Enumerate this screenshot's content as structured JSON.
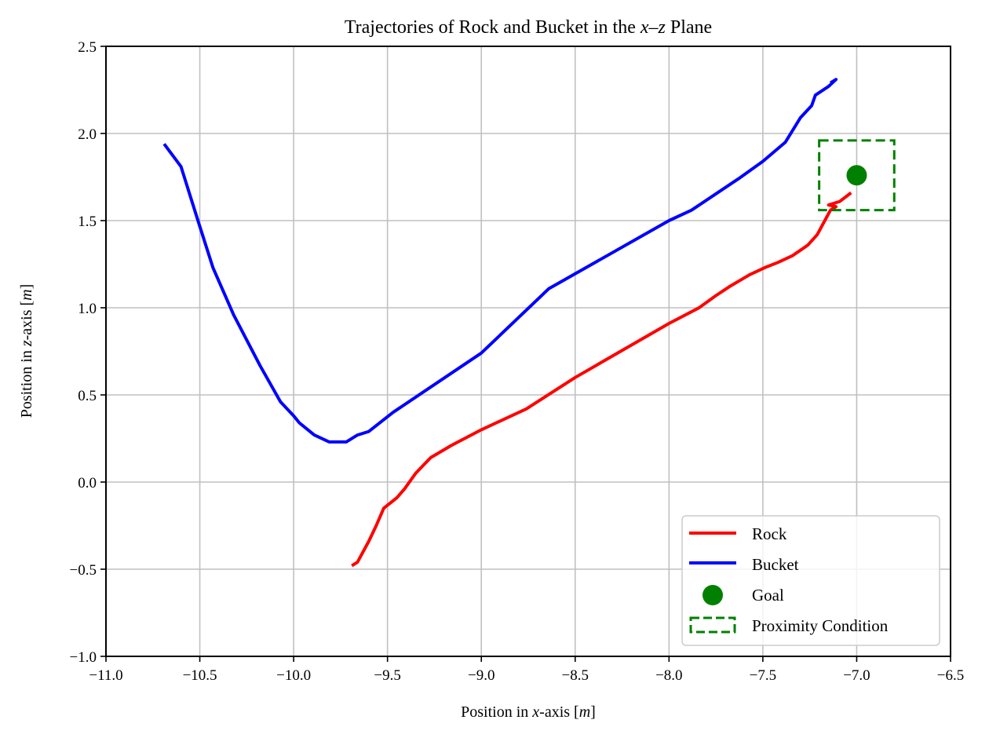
{
  "chart_data": {
    "type": "line",
    "title": "Trajectories of Rock and Bucket in the x–z Plane",
    "title_parts": {
      "pre": "Trajectories of Rock and Bucket in the ",
      "italic": "x–z",
      "post": " Plane"
    },
    "xlabel": "Position in x-axis [m]",
    "xlabel_parts": {
      "pre": "Position in ",
      "italic": "x",
      "mid": "-axis [",
      "unit": "m",
      "post": "]"
    },
    "ylabel": "Position in z-axis [m]",
    "ylabel_parts": {
      "pre": "Position in ",
      "italic": "z",
      "mid": "-axis [",
      "unit": "m",
      "post": "]"
    },
    "xlim": [
      -11.0,
      -6.5
    ],
    "ylim": [
      -1.0,
      2.5
    ],
    "xticks": [
      -11.0,
      -10.5,
      -10.0,
      -9.5,
      -9.0,
      -8.5,
      -8.0,
      -7.5,
      -7.0,
      -6.5
    ],
    "xtick_labels": [
      "−11.0",
      "−10.5",
      "−10.0",
      "−9.5",
      "−9.0",
      "−8.5",
      "−8.0",
      "−7.5",
      "−7.0",
      "−6.5"
    ],
    "yticks": [
      -1.0,
      -0.5,
      0.0,
      0.5,
      1.0,
      1.5,
      2.0,
      2.5
    ],
    "ytick_labels": [
      "−1.0",
      "−0.5",
      "0.0",
      "0.5",
      "1.0",
      "1.5",
      "2.0",
      "2.5"
    ],
    "grid": true,
    "legend_position": "lower right",
    "series": [
      {
        "name": "Rock",
        "color": "#ff0000",
        "type": "line",
        "x": [
          -9.69,
          -9.66,
          -9.6,
          -9.56,
          -9.52,
          -9.45,
          -9.41,
          -9.35,
          -9.27,
          -9.16,
          -9.0,
          -8.76,
          -8.5,
          -8.0,
          -7.84,
          -7.75,
          -7.68,
          -7.57,
          -7.53,
          -7.49,
          -7.42,
          -7.34,
          -7.26,
          -7.21,
          -7.17,
          -7.14,
          -7.11,
          -7.15,
          -7.09,
          -7.03
        ],
        "y": [
          -0.48,
          -0.46,
          -0.34,
          -0.25,
          -0.15,
          -0.09,
          -0.04,
          0.05,
          0.14,
          0.21,
          0.3,
          0.42,
          0.6,
          0.91,
          1.0,
          1.07,
          1.12,
          1.19,
          1.21,
          1.23,
          1.26,
          1.3,
          1.36,
          1.42,
          1.5,
          1.56,
          1.58,
          1.59,
          1.61,
          1.66
        ]
      },
      {
        "name": "Bucket",
        "color": "#0000ff",
        "type": "line",
        "x": [
          -10.69,
          -10.6,
          -10.51,
          -10.43,
          -10.32,
          -10.18,
          -10.07,
          -10.0,
          -9.97,
          -9.89,
          -9.81,
          -9.72,
          -9.66,
          -9.6,
          -9.47,
          -9.0,
          -8.64,
          -8.0,
          -7.88,
          -7.63,
          -7.5,
          -7.38,
          -7.3,
          -7.24,
          -7.22,
          -7.15,
          -7.11,
          -7.14
        ],
        "y": [
          1.94,
          1.81,
          1.5,
          1.23,
          0.96,
          0.67,
          0.46,
          0.38,
          0.34,
          0.27,
          0.23,
          0.23,
          0.27,
          0.29,
          0.4,
          0.74,
          1.11,
          1.5,
          1.56,
          1.74,
          1.84,
          1.95,
          2.09,
          2.16,
          2.22,
          2.27,
          2.31,
          2.29
        ]
      },
      {
        "name": "Goal",
        "color": "#008000",
        "type": "scatter",
        "x": [
          -7.0
        ],
        "y": [
          1.76
        ]
      },
      {
        "name": "Proximity Condition",
        "color": "#008000",
        "type": "rectangle-dashed",
        "x_range": [
          -7.2,
          -6.8
        ],
        "y_range": [
          1.56,
          1.96
        ]
      }
    ]
  },
  "legend": {
    "items": [
      {
        "label": "Rock",
        "marker": "line",
        "color": "#ff0000"
      },
      {
        "label": "Bucket",
        "marker": "line",
        "color": "#0000ff"
      },
      {
        "label": "Goal",
        "marker": "circle",
        "color": "#008000"
      },
      {
        "label": "Proximity Condition",
        "marker": "dashed-rect",
        "color": "#008000"
      }
    ]
  }
}
